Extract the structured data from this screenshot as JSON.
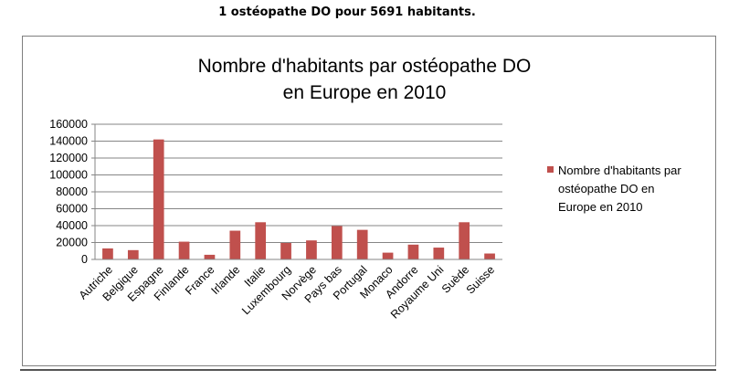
{
  "page_heading": "1 ostéopathe DO pour 5691 habitants.",
  "chart_data": {
    "type": "bar",
    "title": [
      "Nombre d'habitants par ostéopathe DO",
      "en Europe en 2010"
    ],
    "categories": [
      "Autriche",
      "Belgique",
      "Espagne",
      "Finlande",
      "France",
      "Irlande",
      "Italie",
      "Luxembourg",
      "Norvège",
      "Pays bas",
      "Portugal",
      "Monaco",
      "Andorre",
      "Royaume Uni",
      "Suède",
      "Suisse"
    ],
    "series": [
      {
        "name": [
          "Nombre d'habitants par",
          "ostéopathe DO en",
          "Europe en 2010"
        ],
        "color": "#c0504d",
        "values": [
          13000,
          11000,
          142000,
          21000,
          5500,
          34000,
          44000,
          19500,
          22500,
          39500,
          35000,
          8000,
          17500,
          14000,
          44000,
          7000
        ]
      }
    ],
    "ylim": [
      0,
      160000
    ],
    "yticks": [
      "0",
      "20000",
      "40000",
      "60000",
      "80000",
      "100000",
      "120000",
      "140000",
      "160000"
    ],
    "grid": true,
    "legend": "right"
  }
}
